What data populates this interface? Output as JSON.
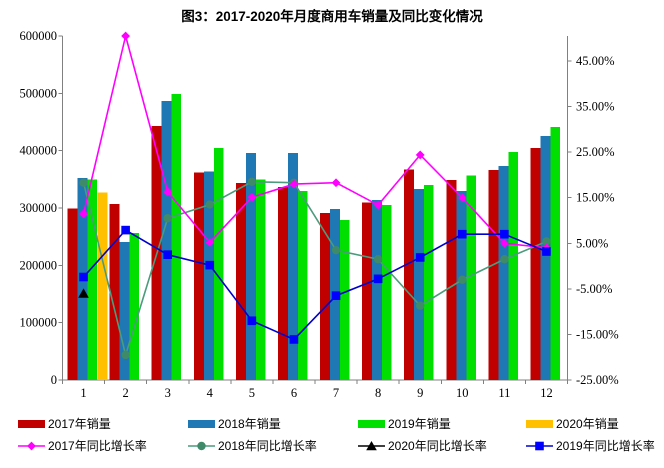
{
  "chart_data": {
    "type": "bar+line",
    "title": "图3：2017-2020年月度商用车销量及同比变化情况",
    "xlabel": "",
    "ylabel": "",
    "categories": [
      "1",
      "2",
      "3",
      "4",
      "5",
      "6",
      "7",
      "8",
      "9",
      "10",
      "11",
      "12"
    ],
    "bar_series": [
      {
        "key": "sales_2017",
        "name": "2017年销量",
        "color": "#C00000",
        "values": [
          299000,
          307000,
          443000,
          362000,
          344000,
          337000,
          291000,
          310000,
          367000,
          349000,
          366000,
          405000
        ]
      },
      {
        "key": "sales_2018",
        "name": "2018年销量",
        "color": "#1F77B4",
        "values": [
          352000,
          241000,
          487000,
          364000,
          396000,
          396000,
          298000,
          314000,
          333000,
          330000,
          373000,
          426000
        ]
      },
      {
        "key": "sales_2019",
        "name": "2019年销量",
        "color": "#00DF00",
        "values": [
          350000,
          256000,
          499000,
          405000,
          350000,
          330000,
          279000,
          305000,
          340000,
          357000,
          398000,
          441000
        ]
      },
      {
        "key": "sales_2020",
        "name": "2020年销量",
        "color": "#FFC000",
        "values": [
          327000,
          null,
          null,
          null,
          null,
          null,
          null,
          null,
          null,
          null,
          null,
          null
        ]
      }
    ],
    "line_series": [
      {
        "key": "growth_2017",
        "name": "2017年同比增长率",
        "color": "#FF00FF",
        "marker": "diamond",
        "marker_color": "#FF00FF",
        "values": [
          11.5,
          50.5,
          16.3,
          5.2,
          15.1,
          18.0,
          18.3,
          13.4,
          24.4,
          15.0,
          5.0,
          4.0
        ]
      },
      {
        "key": "growth_2018",
        "name": "2018年同比增长率",
        "color": "#4C9B7C",
        "marker": "circle",
        "marker_color": "#3F8A68",
        "values": [
          18.3,
          -19.5,
          10.5,
          13.5,
          18.5,
          18.3,
          3.5,
          1.5,
          -8.7,
          -3.0,
          1.5,
          5.4
        ]
      },
      {
        "key": "growth_2020",
        "name": "2020年同比增长率",
        "color": "#000000",
        "marker": "triangle",
        "marker_color": "#000000",
        "values": [
          -6.0,
          null,
          null,
          null,
          null,
          null,
          null,
          null,
          null,
          null,
          null,
          null
        ]
      },
      {
        "key": "growth_2019",
        "name": "2019年同比增长率",
        "color": "#0000CD",
        "marker": "square",
        "marker_color": "#0000FF",
        "values": [
          -2.4,
          7.9,
          2.5,
          0.2,
          -12.0,
          -16.1,
          -6.5,
          -2.8,
          1.9,
          7.0,
          7.0,
          3.2
        ]
      }
    ],
    "y_axis": {
      "min": 0,
      "max": 600000,
      "tick_values": [
        0,
        100000,
        200000,
        300000,
        400000,
        500000,
        600000
      ],
      "tick_labels": [
        "0",
        "100000",
        "200000",
        "300000",
        "400000",
        "500000",
        "600000"
      ]
    },
    "y2_axis": {
      "min": -25,
      "max": 50.5,
      "tick_values": [
        -25,
        -15,
        -5,
        5,
        15,
        25,
        35,
        45
      ],
      "tick_labels": [
        "-25.00%",
        "-15.00%",
        "-5.00%",
        "5.00%",
        "15.00%",
        "25.00%",
        "35.00%",
        "45.00%"
      ]
    },
    "grid": false,
    "legend_position": "bottom",
    "legend_rows": [
      [
        "sales_2017",
        "sales_2018",
        "sales_2019",
        "sales_2020"
      ],
      [
        "growth_2017",
        "growth_2018",
        "growth_2020",
        "growth_2019"
      ]
    ],
    "axis_color": "#808080"
  }
}
